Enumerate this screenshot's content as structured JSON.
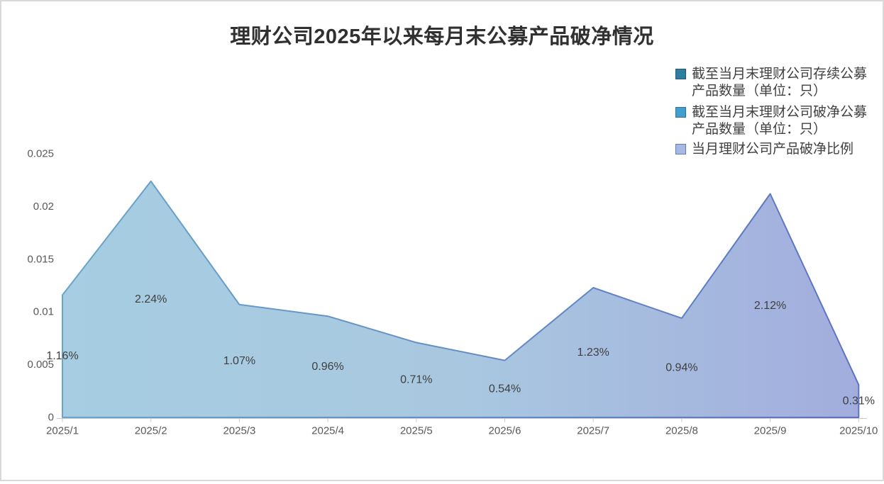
{
  "frame": {
    "border_color": "#d9d9d9",
    "background": "#ffffff"
  },
  "chart_data": {
    "type": "area",
    "title": "理财公司2025年以来每月末公募产品破净情况",
    "xlabel": "",
    "ylabel": "",
    "categories": [
      "2025/1",
      "2025/2",
      "2025/3",
      "2025/4",
      "2025/5",
      "2025/6",
      "2025/7",
      "2025/8",
      "2025/9",
      "2025/10"
    ],
    "y_axis": {
      "tick_labels": [
        "0",
        "0.005",
        "0.01",
        "0.015",
        "0.02",
        "0.025"
      ],
      "tick_values": [
        0,
        0.005,
        0.01,
        0.015,
        0.02,
        0.025
      ],
      "min": 0,
      "max": 0.025
    },
    "grid": false,
    "legend_position": "right",
    "legend": [
      {
        "name": "截至当月末理财公司存续公募产品数量（单位：只）",
        "lines": [
          "截至当月末理财公司存续公募",
          "产品数量（单位：只）"
        ],
        "swatch_fill": "#2e7f9f",
        "swatch_border": "#1f567c"
      },
      {
        "name": "截至当月末理财公司破净公募产品数量（单位：只）",
        "lines": [
          "截至当月末理财公司破净公募",
          "产品数量（单位：只）"
        ],
        "swatch_fill": "#41a0cb",
        "swatch_border": "#2d6ea6"
      },
      {
        "name": "当月理财公司产品破净比例",
        "lines": [
          "当月理财公司产品破净比例"
        ],
        "swatch_fill": "#a9b8e1",
        "swatch_border": "#5c7dc4"
      }
    ],
    "series": [
      {
        "name": "截至当月末理财公司存续公募产品数量（单位：只）",
        "values_visible": false
      },
      {
        "name": "截至当月末理财公司破净公募产品数量（单位：只）",
        "values_visible": false
      },
      {
        "name": "当月理财公司产品破净比例",
        "values_visible": true,
        "values": [
          0.0116,
          0.0224,
          0.0107,
          0.0096,
          0.0071,
          0.0054,
          0.0123,
          0.0094,
          0.0212,
          0.0031
        ],
        "data_labels": [
          "1.16%",
          "2.24%",
          "1.07%",
          "0.96%",
          "0.71%",
          "0.54%",
          "1.23%",
          "0.94%",
          "2.12%",
          "0.31%"
        ]
      }
    ],
    "area_style": {
      "fill_gradient": [
        "#a6cde1",
        "#a9c8e0",
        "#a2addd"
      ],
      "stroke_gradient": [
        "#6aa5c9",
        "#5d73c2"
      ],
      "stroke_width": 2
    },
    "axis_line_color": "#c9c9c9",
    "text_colors": {
      "title": "#303030",
      "axis": "#595959",
      "data_label": "#3f3f3f",
      "legend": "#404040"
    }
  }
}
